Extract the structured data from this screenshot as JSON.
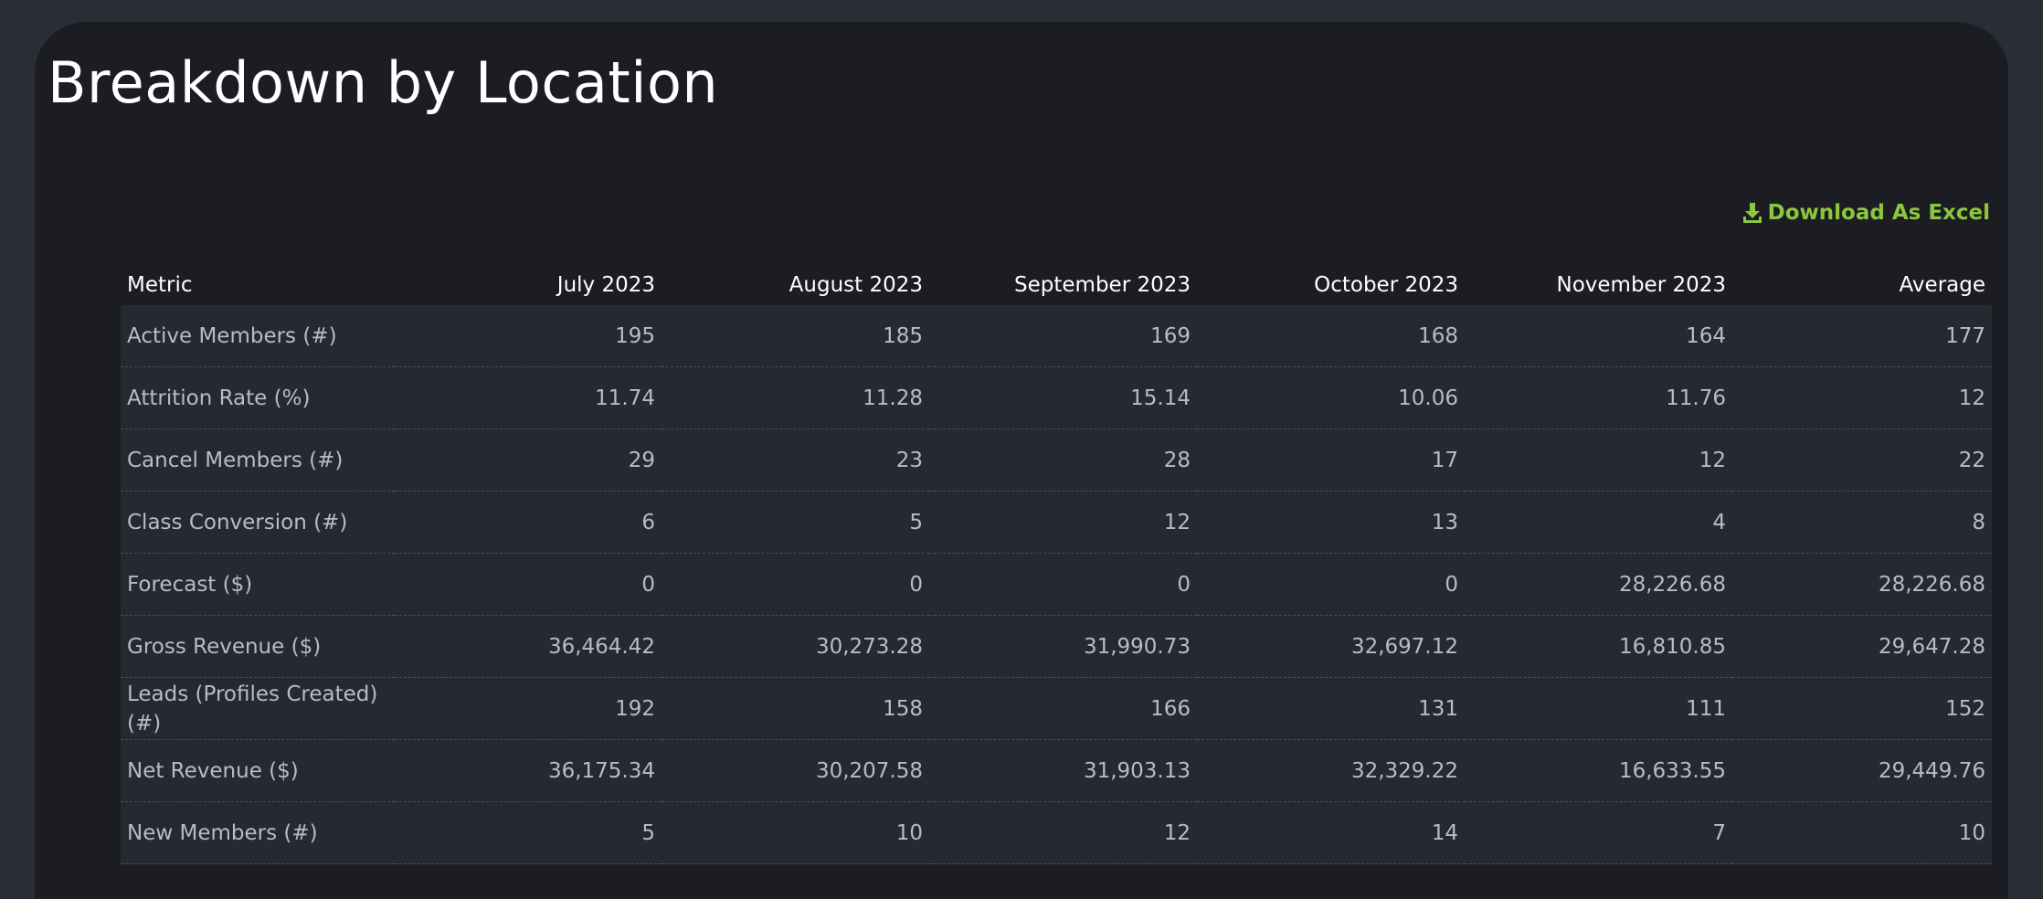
{
  "page": {
    "title": "Breakdown by Location"
  },
  "toolbar": {
    "download_label": "Download As Excel",
    "download_icon": "download-icon",
    "download_color": "#8cc63f"
  },
  "table": {
    "columns": [
      "Metric",
      "July 2023",
      "August 2023",
      "September 2023",
      "October 2023",
      "November 2023",
      "Average"
    ],
    "rows": [
      {
        "metric": "Active Members (#)",
        "values": [
          "195",
          "185",
          "169",
          "168",
          "164",
          "177"
        ]
      },
      {
        "metric": "Attrition Rate (%)",
        "values": [
          "11.74",
          "11.28",
          "15.14",
          "10.06",
          "11.76",
          "12"
        ]
      },
      {
        "metric": "Cancel Members (#)",
        "values": [
          "29",
          "23",
          "28",
          "17",
          "12",
          "22"
        ]
      },
      {
        "metric": "Class Conversion (#)",
        "values": [
          "6",
          "5",
          "12",
          "13",
          "4",
          "8"
        ]
      },
      {
        "metric": "Forecast ($)",
        "values": [
          "0",
          "0",
          "0",
          "0",
          "28,226.68",
          "28,226.68"
        ]
      },
      {
        "metric": "Gross Revenue ($)",
        "values": [
          "36,464.42",
          "30,273.28",
          "31,990.73",
          "32,697.12",
          "16,810.85",
          "29,647.28"
        ]
      },
      {
        "metric": "Leads (Profiles Created) (#)",
        "values": [
          "192",
          "158",
          "166",
          "131",
          "111",
          "152"
        ]
      },
      {
        "metric": "Net Revenue ($)",
        "values": [
          "36,175.34",
          "30,207.58",
          "31,903.13",
          "32,329.22",
          "16,633.55",
          "29,449.76"
        ]
      },
      {
        "metric": "New Members (#)",
        "values": [
          "5",
          "10",
          "12",
          "14",
          "7",
          "10"
        ]
      }
    ]
  }
}
